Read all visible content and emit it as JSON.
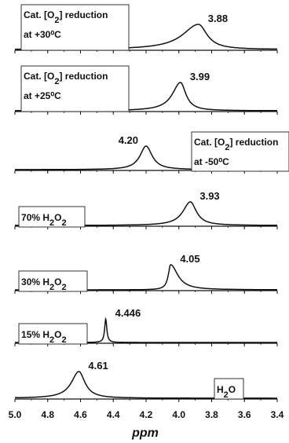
{
  "chart_data": {
    "type": "line",
    "xlabel": "ppm",
    "xlim": [
      5.0,
      3.4
    ],
    "xaxis_reversed": true,
    "xticks": [
      "5.0",
      "4.8",
      "4.6",
      "4.4",
      "4.2",
      "4.0",
      "3.8",
      "3.6",
      "3.4"
    ],
    "grid": false,
    "series": [
      {
        "label_lines": [
          "Cat. [O2] reduction",
          "at +30⁰C"
        ],
        "peak_ppm": 3.88,
        "peak_label": "3.88",
        "width_ppm": 0.09,
        "skew": 0.3
      },
      {
        "label_lines": [
          "Cat. [O2] reduction",
          "at +25⁰C"
        ],
        "peak_ppm": 3.99,
        "peak_label": "3.99",
        "width_ppm": 0.05,
        "skew": 0.2
      },
      {
        "label_lines": [
          "Cat. [O2] reduction",
          "at -50⁰C"
        ],
        "peak_ppm": 4.2,
        "peak_label": "4.20",
        "width_ppm": 0.045,
        "skew": 0.0
      },
      {
        "label_lines": [
          "70% H2O2"
        ],
        "peak_ppm": 3.93,
        "peak_label": "3.93",
        "width_ppm": 0.05,
        "skew": 0.1
      },
      {
        "label_lines": [
          "30% H2O2"
        ],
        "peak_ppm": 4.05,
        "peak_label": "4.05",
        "width_ppm": 0.035,
        "skew": -0.5
      },
      {
        "label_lines": [
          "15% H2O2"
        ],
        "peak_ppm": 4.446,
        "peak_label": "4.446",
        "width_ppm": 0.008,
        "skew": 0.0
      },
      {
        "label_lines": [
          "H2O"
        ],
        "peak_ppm": 4.61,
        "peak_label": "4.61",
        "width_ppm": 0.05,
        "skew": 0.1
      }
    ]
  }
}
